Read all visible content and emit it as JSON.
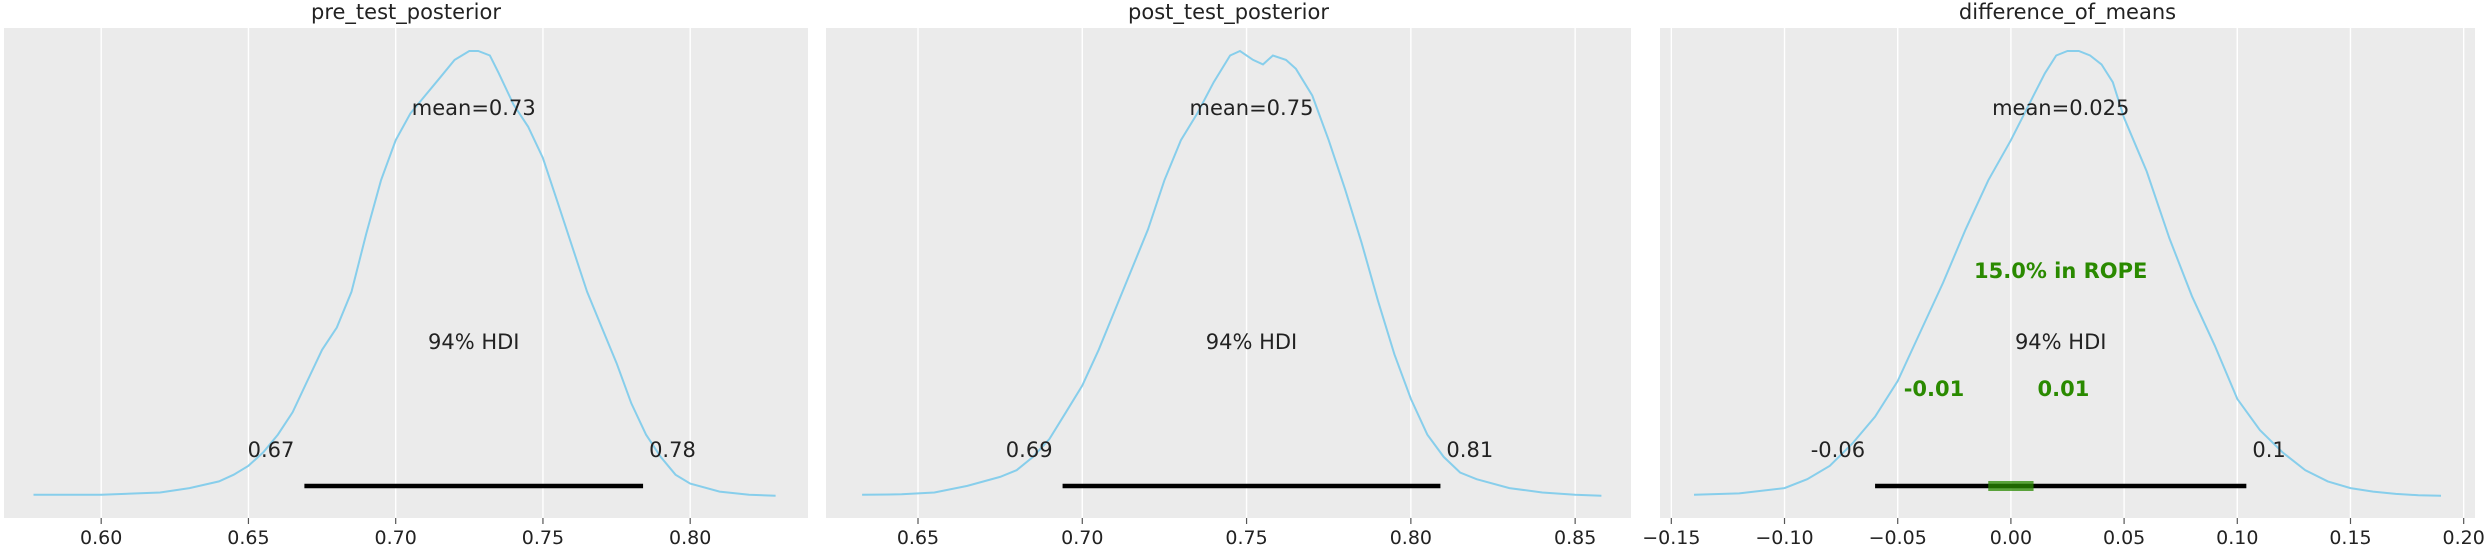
{
  "chart_data": [
    {
      "type": "density",
      "title": "pre_test_posterior",
      "xlim": [
        0.567,
        0.84
      ],
      "ticks": [
        {
          "v": 0.6,
          "label": "0.60"
        },
        {
          "v": 0.65,
          "label": "0.65"
        },
        {
          "v": 0.7,
          "label": "0.70"
        },
        {
          "v": 0.75,
          "label": "0.75"
        },
        {
          "v": 0.8,
          "label": "0.80"
        }
      ],
      "grid": true,
      "curve_color": "#87ceeb",
      "density": {
        "x": [
          0.577,
          0.6,
          0.62,
          0.63,
          0.64,
          0.645,
          0.65,
          0.655,
          0.66,
          0.665,
          0.67,
          0.675,
          0.68,
          0.685,
          0.69,
          0.695,
          0.7,
          0.705,
          0.71,
          0.715,
          0.72,
          0.725,
          0.728,
          0.732,
          0.735,
          0.74,
          0.745,
          0.75,
          0.755,
          0.76,
          0.765,
          0.77,
          0.775,
          0.78,
          0.785,
          0.79,
          0.795,
          0.8,
          0.81,
          0.82,
          0.829
        ],
        "y": [
          0.005,
          0.005,
          0.01,
          0.02,
          0.035,
          0.05,
          0.07,
          0.1,
          0.14,
          0.19,
          0.26,
          0.33,
          0.38,
          0.46,
          0.59,
          0.71,
          0.8,
          0.86,
          0.9,
          0.94,
          0.98,
          1.0,
          1.0,
          0.99,
          0.95,
          0.88,
          0.83,
          0.76,
          0.66,
          0.56,
          0.46,
          0.38,
          0.3,
          0.21,
          0.14,
          0.09,
          0.05,
          0.03,
          0.012,
          0.005,
          0.003
        ]
      },
      "mean_label": "mean=0.73",
      "hdi_label": "94% HDI",
      "hdi": {
        "low": 0.669,
        "high": 0.784,
        "low_label": "0.67",
        "high_label": "0.78"
      }
    },
    {
      "type": "density",
      "title": "post_test_posterior",
      "xlim": [
        0.622,
        0.867
      ],
      "ticks": [
        {
          "v": 0.65,
          "label": "0.65"
        },
        {
          "v": 0.7,
          "label": "0.70"
        },
        {
          "v": 0.75,
          "label": "0.75"
        },
        {
          "v": 0.8,
          "label": "0.80"
        },
        {
          "v": 0.85,
          "label": "0.85"
        }
      ],
      "grid": true,
      "curve_color": "#87ceeb",
      "density": {
        "x": [
          0.633,
          0.645,
          0.655,
          0.665,
          0.67,
          0.675,
          0.68,
          0.685,
          0.69,
          0.695,
          0.7,
          0.705,
          0.71,
          0.715,
          0.72,
          0.725,
          0.73,
          0.735,
          0.74,
          0.745,
          0.748,
          0.752,
          0.755,
          0.758,
          0.762,
          0.765,
          0.77,
          0.775,
          0.78,
          0.785,
          0.79,
          0.795,
          0.8,
          0.805,
          0.81,
          0.815,
          0.82,
          0.83,
          0.84,
          0.85,
          0.858
        ],
        "y": [
          0.005,
          0.006,
          0.01,
          0.025,
          0.035,
          0.045,
          0.06,
          0.09,
          0.13,
          0.19,
          0.25,
          0.33,
          0.42,
          0.51,
          0.6,
          0.71,
          0.8,
          0.86,
          0.93,
          0.99,
          1.0,
          0.98,
          0.97,
          0.99,
          0.98,
          0.96,
          0.9,
          0.8,
          0.69,
          0.57,
          0.44,
          0.32,
          0.22,
          0.14,
          0.09,
          0.055,
          0.04,
          0.02,
          0.01,
          0.005,
          0.003
        ]
      },
      "mean_label": "mean=0.75",
      "hdi_label": "94% HDI",
      "hdi": {
        "low": 0.694,
        "high": 0.809,
        "low_label": "0.69",
        "high_label": "0.81"
      }
    },
    {
      "type": "density",
      "title": "difference_of_means",
      "xlim": [
        -0.155,
        0.205
      ],
      "ticks": [
        {
          "v": -0.15,
          "label": "−0.15"
        },
        {
          "v": -0.1,
          "label": "−0.10"
        },
        {
          "v": -0.05,
          "label": "−0.05"
        },
        {
          "v": 0.0,
          "label": "0.00"
        },
        {
          "v": 0.05,
          "label": "0.05"
        },
        {
          "v": 0.1,
          "label": "0.10"
        },
        {
          "v": 0.15,
          "label": "0.15"
        },
        {
          "v": 0.2,
          "label": "0.20"
        }
      ],
      "grid": true,
      "curve_color": "#87ceeb",
      "density": {
        "x": [
          -0.14,
          -0.12,
          -0.1,
          -0.09,
          -0.08,
          -0.07,
          -0.06,
          -0.05,
          -0.04,
          -0.03,
          -0.02,
          -0.01,
          0.0,
          0.005,
          0.01,
          0.015,
          0.02,
          0.025,
          0.03,
          0.035,
          0.04,
          0.045,
          0.05,
          0.055,
          0.06,
          0.07,
          0.08,
          0.09,
          0.1,
          0.11,
          0.12,
          0.13,
          0.14,
          0.15,
          0.16,
          0.17,
          0.18,
          0.19
        ],
        "y": [
          0.005,
          0.008,
          0.02,
          0.04,
          0.07,
          0.12,
          0.18,
          0.26,
          0.37,
          0.48,
          0.6,
          0.71,
          0.8,
          0.85,
          0.9,
          0.95,
          0.99,
          1.0,
          1.0,
          0.99,
          0.97,
          0.93,
          0.85,
          0.79,
          0.73,
          0.58,
          0.45,
          0.34,
          0.22,
          0.15,
          0.1,
          0.06,
          0.035,
          0.02,
          0.012,
          0.007,
          0.004,
          0.003
        ]
      },
      "mean_label": "mean=0.025",
      "hdi_label": "94% HDI",
      "hdi": {
        "low": -0.06,
        "high": 0.104,
        "low_label": "-0.06",
        "high_label": "0.1"
      },
      "rope": {
        "low": -0.01,
        "high": 0.01,
        "label": "15.0% in ROPE",
        "low_label": "-0.01",
        "high_label": "0.01",
        "color": "#2a8a00"
      }
    }
  ]
}
